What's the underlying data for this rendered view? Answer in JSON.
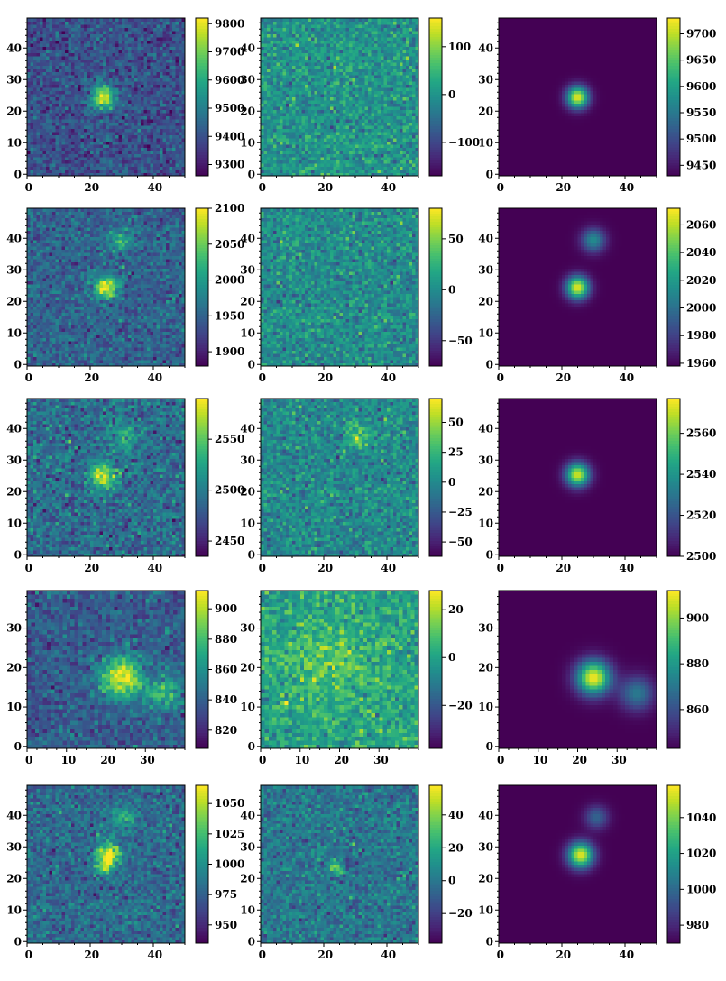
{
  "chart_data": [
    {
      "type": "heatmap",
      "row": 0,
      "col": 0,
      "kind": "data",
      "grid": 50,
      "sources": [
        {
          "x": 24,
          "y": 25,
          "amp": 380,
          "sigma": 2.6
        }
      ],
      "base": 9400,
      "noise": 90,
      "xticks": [
        0,
        20,
        40
      ],
      "yticks": [
        0,
        10,
        20,
        30,
        40
      ],
      "clim": [
        9260,
        9820
      ],
      "cbar_ticks": [
        9300,
        9400,
        9500,
        9600,
        9700,
        9800
      ]
    },
    {
      "type": "heatmap",
      "row": 0,
      "col": 1,
      "kind": "residual",
      "grid": 50,
      "sources": [],
      "base": 0,
      "noise": 60,
      "xticks": [
        0,
        20,
        40
      ],
      "yticks": [
        0,
        10,
        20,
        30,
        40
      ],
      "clim": [
        -170,
        160
      ],
      "cbar_ticks": [
        -100,
        0,
        100
      ]
    },
    {
      "type": "heatmap",
      "row": 0,
      "col": 2,
      "kind": "model",
      "grid": 50,
      "sources": [
        {
          "x": 25,
          "y": 25,
          "amp": 290,
          "sigma": 2.4
        }
      ],
      "base": 9430,
      "noise": 0,
      "xticks": [
        0,
        20,
        40
      ],
      "yticks": [
        0,
        10,
        20,
        30,
        40
      ],
      "clim": [
        9430,
        9730
      ],
      "cbar_ticks": [
        9450,
        9500,
        9550,
        9600,
        9650,
        9700
      ]
    },
    {
      "type": "heatmap",
      "row": 1,
      "col": 0,
      "kind": "data",
      "grid": 50,
      "sources": [
        {
          "x": 25,
          "y": 25,
          "amp": 140,
          "sigma": 2.5
        },
        {
          "x": 30,
          "y": 40,
          "amp": 70,
          "sigma": 2.6
        }
      ],
      "base": 1950,
      "noise": 35,
      "xticks": [
        0,
        20,
        40
      ],
      "yticks": [
        0,
        10,
        20,
        30,
        40
      ],
      "clim": [
        1880,
        2100
      ],
      "cbar_ticks": [
        1900,
        1950,
        2000,
        2050,
        2100
      ]
    },
    {
      "type": "heatmap",
      "row": 1,
      "col": 1,
      "kind": "residual",
      "grid": 50,
      "sources": [],
      "base": 0,
      "noise": 28,
      "xticks": [
        0,
        20,
        40
      ],
      "yticks": [
        0,
        10,
        20,
        30,
        40
      ],
      "clim": [
        -75,
        80
      ],
      "cbar_ticks": [
        -50,
        0,
        50
      ]
    },
    {
      "type": "heatmap",
      "row": 1,
      "col": 2,
      "kind": "model",
      "grid": 50,
      "sources": [
        {
          "x": 25,
          "y": 25,
          "amp": 110,
          "sigma": 2.5
        },
        {
          "x": 30,
          "y": 40,
          "amp": 55,
          "sigma": 2.6
        }
      ],
      "base": 1958,
      "noise": 0,
      "xticks": [
        0,
        20,
        40
      ],
      "yticks": [
        0,
        10,
        20,
        30,
        40
      ],
      "clim": [
        1958,
        2072
      ],
      "cbar_ticks": [
        1960,
        1980,
        2000,
        2020,
        2040,
        2060
      ]
    },
    {
      "type": "heatmap",
      "row": 2,
      "col": 0,
      "kind": "data",
      "grid": 50,
      "sources": [
        {
          "x": 24,
          "y": 26,
          "amp": 95,
          "sigma": 2.8
        },
        {
          "x": 31,
          "y": 38,
          "amp": 40,
          "sigma": 3.0
        }
      ],
      "base": 2490,
      "noise": 30,
      "xticks": [
        0,
        20,
        40
      ],
      "yticks": [
        0,
        10,
        20,
        30,
        40
      ],
      "clim": [
        2435,
        2590
      ],
      "cbar_ticks": [
        2450,
        2500,
        2550
      ]
    },
    {
      "type": "heatmap",
      "row": 2,
      "col": 1,
      "kind": "residual",
      "grid": 50,
      "sources": [
        {
          "x": 31,
          "y": 38,
          "amp": 35,
          "sigma": 3.0
        }
      ],
      "base": 0,
      "noise": 24,
      "xticks": [
        0,
        20,
        40
      ],
      "yticks": [
        0,
        10,
        20,
        30,
        40
      ],
      "clim": [
        -62,
        70
      ],
      "cbar_ticks": [
        -50,
        -25,
        0,
        25,
        50
      ]
    },
    {
      "type": "heatmap",
      "row": 2,
      "col": 2,
      "kind": "model",
      "grid": 50,
      "sources": [
        {
          "x": 25,
          "y": 26,
          "amp": 72,
          "sigma": 2.6
        }
      ],
      "base": 2500,
      "noise": 0,
      "xticks": [
        0,
        20,
        40
      ],
      "yticks": [
        0,
        10,
        20,
        30,
        40
      ],
      "clim": [
        2500,
        2577
      ],
      "cbar_ticks": [
        2500,
        2520,
        2540,
        2560
      ]
    },
    {
      "type": "heatmap",
      "row": 3,
      "col": 0,
      "kind": "data",
      "grid": 40,
      "sources": [
        {
          "x": 24,
          "y": 18,
          "amp": 70,
          "sigma": 3.8
        },
        {
          "x": 35,
          "y": 14,
          "amp": 35,
          "sigma": 3.5
        }
      ],
      "base": 838,
      "noise": 16,
      "xticks": [
        0,
        10,
        20,
        30
      ],
      "yticks": [
        0,
        10,
        20,
        30
      ],
      "clim": [
        808,
        912
      ],
      "cbar_ticks": [
        820,
        840,
        860,
        880,
        900
      ]
    },
    {
      "type": "heatmap",
      "row": 3,
      "col": 1,
      "kind": "residual",
      "grid": 40,
      "sources": [
        {
          "x": 18,
          "y": 22,
          "amp": 10,
          "sigma": 8.0
        }
      ],
      "base": 0,
      "noise": 12,
      "xticks": [
        0,
        10,
        20,
        30
      ],
      "yticks": [
        0,
        10,
        20,
        30
      ],
      "clim": [
        -38,
        28
      ],
      "cbar_ticks": [
        -20,
        0,
        20
      ]
    },
    {
      "type": "heatmap",
      "row": 3,
      "col": 2,
      "kind": "model",
      "grid": 40,
      "sources": [
        {
          "x": 24,
          "y": 18,
          "amp": 68,
          "sigma": 3.0
        },
        {
          "x": 35,
          "y": 14,
          "amp": 28,
          "sigma": 3.0
        }
      ],
      "base": 843,
      "noise": 0,
      "xticks": [
        0,
        10,
        20,
        30
      ],
      "yticks": [
        0,
        10,
        20,
        30
      ],
      "clim": [
        843,
        912
      ],
      "cbar_ticks": [
        860,
        880,
        900
      ]
    },
    {
      "type": "heatmap",
      "row": 4,
      "col": 0,
      "kind": "data",
      "grid": 50,
      "sources": [
        {
          "x": 26,
          "y": 28,
          "amp": 90,
          "sigma": 2.5
        },
        {
          "x": 24,
          "y": 24,
          "amp": 50,
          "sigma": 1.6
        },
        {
          "x": 31,
          "y": 40,
          "amp": 35,
          "sigma": 2.5
        }
      ],
      "base": 980,
      "noise": 22,
      "xticks": [
        0,
        20,
        40
      ],
      "yticks": [
        0,
        10,
        20,
        30,
        40
      ],
      "clim": [
        935,
        1065
      ],
      "cbar_ticks": [
        950,
        975,
        1000,
        1025,
        1050
      ]
    },
    {
      "type": "heatmap",
      "row": 4,
      "col": 1,
      "kind": "residual",
      "grid": 50,
      "sources": [
        {
          "x": 24,
          "y": 24,
          "amp": 40,
          "sigma": 1.3
        },
        {
          "x": 28,
          "y": 26,
          "amp": -30,
          "sigma": 1.3
        }
      ],
      "base": 0,
      "noise": 16,
      "xticks": [
        0,
        20,
        40
      ],
      "yticks": [
        0,
        10,
        20,
        30,
        40
      ],
      "clim": [
        -38,
        58
      ],
      "cbar_ticks": [
        -20,
        0,
        20,
        40
      ]
    },
    {
      "type": "heatmap",
      "row": 4,
      "col": 2,
      "kind": "model",
      "grid": 50,
      "sources": [
        {
          "x": 26,
          "y": 28,
          "amp": 85,
          "sigma": 2.8
        },
        {
          "x": 31,
          "y": 40,
          "amp": 28,
          "sigma": 2.6
        }
      ],
      "base": 970,
      "noise": 0,
      "xticks": [
        0,
        20,
        40
      ],
      "yticks": [
        0,
        10,
        20,
        30,
        40
      ],
      "clim": [
        970,
        1058
      ],
      "cbar_ticks": [
        980,
        1000,
        1020,
        1040
      ]
    }
  ]
}
